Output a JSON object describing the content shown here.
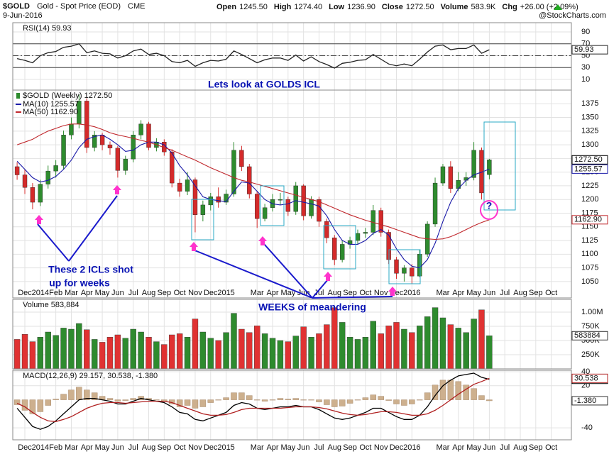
{
  "header": {
    "symbol": "$GOLD",
    "name": "Gold - Spot Price (EOD)",
    "exchange": "CME",
    "date": "9-Jun-2016",
    "watermark": "@StockCharts.com",
    "quote": [
      {
        "label": "Open",
        "value": "1245.50"
      },
      {
        "label": "High",
        "value": "1274.40"
      },
      {
        "label": "Low",
        "value": "1236.90"
      },
      {
        "label": "Close",
        "value": "1272.50"
      },
      {
        "label": "Volume",
        "value": "583.9K"
      },
      {
        "label": "Chg",
        "value": "+26.00 (+2.09%)"
      }
    ]
  },
  "annotations": {
    "headline": "Lets look at GOLDS ICL",
    "note_left": [
      "These 2 ICLs shot",
      "up for weeks"
    ],
    "note_bottom": "WEEKS of meandering",
    "question": "?"
  },
  "chart_data": [
    {
      "type": "line",
      "title": "RSI(14) 59.93",
      "color": "#222222",
      "values": [
        45,
        42,
        38,
        50,
        55,
        57,
        64,
        66,
        70,
        55,
        58,
        54,
        53,
        46,
        50,
        58,
        61,
        52,
        54,
        50,
        40,
        38,
        42,
        32,
        38,
        42,
        41,
        44,
        58,
        52,
        45,
        38,
        43,
        46,
        46,
        42,
        51,
        41,
        48,
        40,
        35,
        29,
        37,
        39,
        42,
        43,
        52,
        44,
        36,
        33,
        36,
        33,
        44,
        56,
        66,
        68,
        60,
        62,
        62,
        68,
        54,
        59.93
      ],
      "ylim": [
        -8,
        105.5
      ],
      "yticks": [
        90,
        70,
        50,
        30,
        10
      ],
      "reference_lines": [
        {
          "value": 70,
          "style": "solid"
        },
        {
          "value": 50,
          "style": "dashed"
        },
        {
          "value": 30,
          "style": "solid"
        }
      ]
    },
    {
      "type": "candlestick",
      "title": "$GOLD (Weekly) 1272.50",
      "up_color": "#2e8b2e",
      "down_color": "#d42a2a",
      "last_label": "1272.50",
      "grid": true,
      "xaxis_labels": true,
      "x": [
        -0.5,
        0,
        0.5,
        1,
        1.5,
        2,
        2.5,
        3,
        3.5,
        4,
        4.5,
        5,
        5.5,
        6,
        6.5,
        7,
        7.5,
        8,
        8.5,
        9,
        9.5,
        10,
        10.5,
        11,
        11.5,
        12,
        12.5,
        13,
        13.5,
        14,
        14.5,
        15,
        15.5,
        16,
        16.5,
        17,
        17.5,
        18,
        18.5,
        19,
        19.5,
        20,
        20.5,
        21,
        21.5,
        22,
        22.5,
        23,
        23.5,
        24,
        24.5,
        25,
        25.5,
        26,
        26.5,
        27,
        27.5,
        28,
        28.5,
        29,
        29.5,
        30
      ],
      "open": [
        1260,
        1245,
        1222,
        1195,
        1228,
        1252,
        1262,
        1318,
        1338,
        1380,
        1295,
        1318,
        1300,
        1294,
        1253,
        1274,
        1318,
        1338,
        1295,
        1305,
        1287,
        1230,
        1215,
        1236,
        1172,
        1190,
        1205,
        1195,
        1210,
        1290,
        1260,
        1210,
        1165,
        1185,
        1200,
        1200,
        1178,
        1225,
        1170,
        1200,
        1160,
        1130,
        1090,
        1118,
        1125,
        1138,
        1140,
        1180,
        1140,
        1090,
        1065,
        1075,
        1060,
        1100,
        1155,
        1230,
        1260,
        1220,
        1235,
        1240,
        1290,
        1245.5
      ],
      "high": [
        1268,
        1255,
        1230,
        1236,
        1262,
        1272,
        1326,
        1350,
        1392,
        1385,
        1325,
        1322,
        1306,
        1298,
        1280,
        1325,
        1345,
        1342,
        1312,
        1310,
        1292,
        1238,
        1250,
        1240,
        1198,
        1212,
        1222,
        1218,
        1305,
        1298,
        1265,
        1215,
        1192,
        1210,
        1212,
        1205,
        1232,
        1228,
        1206,
        1205,
        1165,
        1135,
        1125,
        1132,
        1145,
        1148,
        1190,
        1185,
        1145,
        1095,
        1080,
        1082,
        1108,
        1160,
        1240,
        1265,
        1270,
        1250,
        1250,
        1305,
        1295,
        1274.4
      ],
      "low": [
        1236,
        1210,
        1182,
        1188,
        1220,
        1240,
        1255,
        1310,
        1330,
        1285,
        1288,
        1290,
        1282,
        1240,
        1245,
        1268,
        1310,
        1290,
        1288,
        1280,
        1222,
        1205,
        1208,
        1140,
        1160,
        1180,
        1185,
        1190,
        1205,
        1252,
        1202,
        1148,
        1160,
        1178,
        1190,
        1170,
        1172,
        1162,
        1165,
        1150,
        1120,
        1080,
        1085,
        1110,
        1118,
        1130,
        1135,
        1132,
        1082,
        1055,
        1050,
        1046,
        1058,
        1095,
        1150,
        1225,
        1212,
        1215,
        1225,
        1235,
        1200,
        1236.9
      ],
      "close": [
        1245,
        1222,
        1195,
        1228,
        1252,
        1262,
        1318,
        1338,
        1380,
        1295,
        1318,
        1300,
        1294,
        1253,
        1274,
        1318,
        1338,
        1295,
        1305,
        1287,
        1230,
        1215,
        1236,
        1172,
        1190,
        1205,
        1195,
        1210,
        1290,
        1260,
        1210,
        1165,
        1185,
        1200,
        1200,
        1178,
        1225,
        1170,
        1200,
        1160,
        1130,
        1090,
        1118,
        1125,
        1138,
        1140,
        1180,
        1140,
        1090,
        1065,
        1075,
        1060,
        1100,
        1155,
        1230,
        1260,
        1220,
        1235,
        1240,
        1290,
        1212,
        1272.5
      ],
      "overlays": [
        {
          "name": "MA(10) 1255.57",
          "color": "#1a1aa8",
          "values": [
            1270,
            1255,
            1240,
            1232,
            1235,
            1242,
            1255,
            1272,
            1295,
            1310,
            1315,
            1318,
            1310,
            1300,
            1288,
            1290,
            1300,
            1305,
            1305,
            1300,
            1285,
            1262,
            1245,
            1225,
            1205,
            1200,
            1198,
            1196,
            1215,
            1232,
            1230,
            1215,
            1200,
            1192,
            1190,
            1192,
            1198,
            1195,
            1192,
            1188,
            1170,
            1145,
            1125,
            1118,
            1118,
            1125,
            1138,
            1145,
            1135,
            1110,
            1090,
            1078,
            1075,
            1090,
            1120,
            1160,
            1195,
            1220,
            1235,
            1245,
            1250,
            1255.57
          ]
        },
        {
          "name": "MA(50) 1162.90",
          "color": "#c0282d",
          "last_label": "1162.90",
          "values": [
            1300,
            1305,
            1310,
            1318,
            1325,
            1330,
            1335,
            1338,
            1338,
            1336,
            1333,
            1328,
            1322,
            1318,
            1315,
            1312,
            1308,
            1305,
            1300,
            1295,
            1290,
            1284,
            1278,
            1272,
            1265,
            1258,
            1252,
            1246,
            1240,
            1235,
            1232,
            1228,
            1224,
            1220,
            1216,
            1212,
            1208,
            1204,
            1200,
            1196,
            1190,
            1184,
            1178,
            1172,
            1167,
            1162,
            1158,
            1154,
            1150,
            1145,
            1140,
            1135,
            1130,
            1128,
            1127,
            1128,
            1132,
            1138,
            1145,
            1152,
            1158,
            1162.9
          ]
        }
      ],
      "xlim": [
        -0.78,
        35.3
      ],
      "xticks": [
        {
          "value": 0,
          "label": "Dec"
        },
        {
          "value": 1,
          "label": "2014"
        },
        {
          "value": 2,
          "label": "Feb"
        },
        {
          "value": 3,
          "label": "Mar"
        },
        {
          "value": 4,
          "label": "Apr"
        },
        {
          "value": 5,
          "label": "May"
        },
        {
          "value": 6,
          "label": "Jun"
        },
        {
          "value": 7,
          "label": "Jul"
        },
        {
          "value": 8,
          "label": "Aug"
        },
        {
          "value": 9,
          "label": "Sep"
        },
        {
          "value": 10,
          "label": "Oct"
        },
        {
          "value": 11,
          "label": "Nov"
        },
        {
          "value": 12,
          "label": "Dec"
        },
        {
          "value": 13,
          "label": "2015"
        },
        {
          "value": 15,
          "label": "Mar"
        },
        {
          "value": 16,
          "label": "Apr"
        },
        {
          "value": 17,
          "label": "May"
        },
        {
          "value": 18,
          "label": "Jun"
        },
        {
          "value": 19,
          "label": "Jul"
        },
        {
          "value": 20,
          "label": "Aug"
        },
        {
          "value": 21,
          "label": "Sep"
        },
        {
          "value": 22,
          "label": "Oct"
        },
        {
          "value": 23,
          "label": "Nov"
        },
        {
          "value": 24,
          "label": "Dec"
        },
        {
          "value": 25,
          "label": "2016"
        },
        {
          "value": 27,
          "label": "Mar"
        },
        {
          "value": 28,
          "label": "Apr"
        },
        {
          "value": 29,
          "label": "May"
        },
        {
          "value": 30,
          "label": "Jun"
        },
        {
          "value": 31,
          "label": "Jul"
        },
        {
          "value": 32,
          "label": "Aug"
        },
        {
          "value": 33,
          "label": "Sep"
        },
        {
          "value": 34,
          "label": "Oct"
        }
      ],
      "ylim": [
        1020,
        1400
      ],
      "yticks": [
        1375,
        1350,
        1325,
        1300,
        1275,
        1250,
        1225,
        1200,
        1175,
        1150,
        1125,
        1100,
        1075,
        1050
      ]
    },
    {
      "type": "bar",
      "title": "Volume 583,884",
      "up_color": "#2e8b2e",
      "down_color": "#e03232",
      "values": [
        520000,
        610000,
        480000,
        560000,
        650000,
        590000,
        720000,
        700000,
        800000,
        690000,
        520000,
        470000,
        560000,
        600000,
        540000,
        700000,
        650000,
        560000,
        480000,
        430000,
        600000,
        620000,
        560000,
        880000,
        650000,
        540000,
        500000,
        640000,
        980000,
        700000,
        640000,
        760000,
        620000,
        540000,
        500000,
        480000,
        580000,
        740000,
        560000,
        620000,
        780000,
        1080000,
        820000,
        560000,
        520000,
        560000,
        840000,
        620000,
        760000,
        820000,
        700000,
        640000,
        760000,
        920000,
        1080000,
        900000,
        780000,
        720000,
        640000,
        880000,
        1040000,
        583884
      ],
      "ylim": [
        0,
        1225000
      ],
      "yticks": [
        {
          "value": 1000000,
          "label": "1.00M"
        },
        {
          "value": 750000,
          "label": "750K"
        },
        {
          "value": 500000,
          "label": "500K"
        },
        {
          "value": 250000,
          "label": "250K"
        }
      ]
    },
    {
      "type": "line",
      "title": "MACD(12,26,9) 29.157, 30.538, -1.380",
      "xaxis_labels": true,
      "series": [
        {
          "style": "bar",
          "color": "#cdb08e",
          "last_label": "-1.380",
          "values": [
            -7,
            -15,
            -20,
            -17,
            -8,
            1,
            8,
            14,
            18,
            14,
            10,
            5,
            2,
            -2,
            -1,
            2,
            5,
            2,
            0,
            -2,
            -6,
            -10,
            -8,
            -12,
            -10,
            -4,
            0,
            3,
            10,
            10,
            6,
            0,
            -2,
            0,
            2,
            1,
            2,
            0,
            0,
            -3,
            -7,
            -10,
            -9,
            -5,
            0,
            3,
            7,
            5,
            -1,
            -6,
            -8,
            -6,
            0,
            10,
            21,
            28,
            28,
            26,
            21,
            16,
            6,
            -1.38
          ]
        },
        {
          "style": "line",
          "color": "#000000",
          "values": [
            -12,
            -25,
            -38,
            -42,
            -38,
            -30,
            -20,
            -10,
            0,
            2,
            2,
            0,
            -2,
            -6,
            -6,
            -2,
            2,
            0,
            -2,
            -4,
            -10,
            -18,
            -20,
            -28,
            -30,
            -26,
            -22,
            -18,
            -8,
            -4,
            -6,
            -12,
            -14,
            -12,
            -10,
            -10,
            -8,
            -10,
            -10,
            -14,
            -20,
            -26,
            -28,
            -26,
            -22,
            -18,
            -12,
            -12,
            -18,
            -24,
            -28,
            -28,
            -22,
            -10,
            6,
            20,
            28,
            34,
            36,
            38,
            32,
            29.157
          ]
        },
        {
          "style": "line",
          "color": "#b02020",
          "values": [
            -5,
            -10,
            -18,
            -25,
            -30,
            -31,
            -28,
            -24,
            -18,
            -12,
            -8,
            -5,
            -4,
            -4,
            -5,
            -4,
            -3,
            -2,
            -2,
            -2,
            -4,
            -8,
            -12,
            -16,
            -20,
            -22,
            -22,
            -21,
            -18,
            -14,
            -12,
            -12,
            -12,
            -12,
            -12,
            -11,
            -10,
            -10,
            -10,
            -11,
            -13,
            -16,
            -19,
            -21,
            -22,
            -21,
            -19,
            -17,
            -17,
            -18,
            -20,
            -22,
            -22,
            -20,
            -15,
            -8,
            0,
            8,
            15,
            22,
            26,
            30.538
          ]
        }
      ],
      "ylim": [
        -57,
        42
      ],
      "yticks": [
        40,
        20,
        -40
      ]
    }
  ]
}
